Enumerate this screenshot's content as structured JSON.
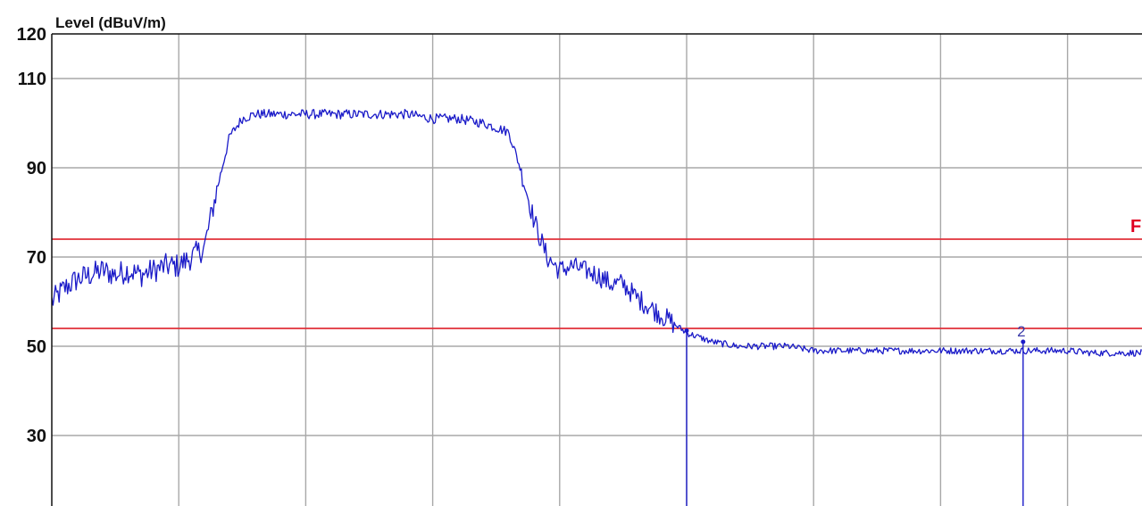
{
  "chart_data": {
    "type": "line",
    "ylabel": "Level (dBuV/m)",
    "xlabel": "",
    "title": "",
    "ylim": [
      15,
      120
    ],
    "xlim": [
      0,
      8.6
    ],
    "y_ticks": [
      "120",
      "110",
      "90",
      "70",
      "50",
      "30"
    ],
    "y_tick_values": [
      120,
      110,
      90,
      70,
      50,
      30
    ],
    "x_gridlines": [
      0,
      1,
      2,
      3,
      4,
      5,
      6,
      7,
      8
    ],
    "y_gridlines": [
      110,
      90,
      70,
      50,
      30
    ],
    "grid": true,
    "limit_lines": [
      {
        "value": 74,
        "tag": "F",
        "color": "#e0303a"
      },
      {
        "value": 54,
        "tag": "",
        "color": "#e0303a"
      }
    ],
    "markers": [
      {
        "label": "",
        "x": 5.0,
        "y": 53.5
      },
      {
        "label": "2",
        "x": 7.65,
        "y": 51.0
      }
    ],
    "series": [
      {
        "color": "#1a1ac8",
        "x": [
          0.0,
          0.1,
          0.2,
          0.3,
          0.4,
          0.5,
          0.6,
          0.7,
          0.8,
          0.9,
          1.0,
          1.1,
          1.2,
          1.3,
          1.4,
          1.5,
          1.6,
          1.7,
          1.8,
          1.9,
          2.0,
          2.2,
          2.4,
          2.6,
          2.8,
          3.0,
          3.2,
          3.4,
          3.6,
          3.7,
          3.8,
          3.9,
          4.0,
          4.1,
          4.2,
          4.3,
          4.4,
          4.5,
          4.6,
          4.7,
          4.8,
          5.0,
          5.2,
          5.4,
          5.6,
          5.8,
          6.0,
          6.2,
          6.4,
          6.6,
          6.8,
          7.0,
          7.2,
          7.4,
          7.6,
          7.8,
          8.0,
          8.2,
          8.4,
          8.6
        ],
        "values": [
          60,
          63,
          65,
          66,
          67,
          66,
          67,
          66,
          67,
          68,
          68,
          70,
          72,
          85,
          97,
          101,
          102,
          102,
          102,
          102,
          102,
          102,
          102,
          102,
          102,
          101,
          101,
          100,
          98,
          89,
          78,
          70,
          67,
          68,
          67,
          66,
          64,
          64,
          61,
          59,
          57,
          53,
          51,
          50,
          50,
          50,
          49,
          49,
          49,
          49,
          49,
          49,
          49,
          49,
          49,
          49,
          49,
          48.5,
          48.5,
          48.5
        ]
      }
    ]
  }
}
